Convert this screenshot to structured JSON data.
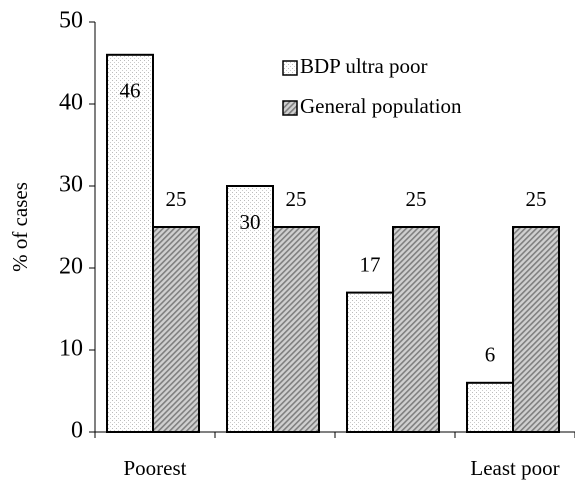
{
  "chart_data": {
    "type": "bar",
    "y_label": "% of cases",
    "categories": [
      "Poorest",
      null,
      null,
      "Least poor"
    ],
    "series": [
      {
        "name": "BDP ultra poor",
        "color": "#f2f2f2",
        "values": [
          46,
          30,
          17,
          6
        ]
      },
      {
        "name": "General population",
        "color": "#7f7f7f",
        "values": [
          25,
          25,
          25,
          25
        ]
      }
    ],
    "ylim": [
      0,
      50
    ],
    "yticks": [
      0,
      10,
      20,
      30,
      40,
      50
    ],
    "legend": "upper right"
  }
}
